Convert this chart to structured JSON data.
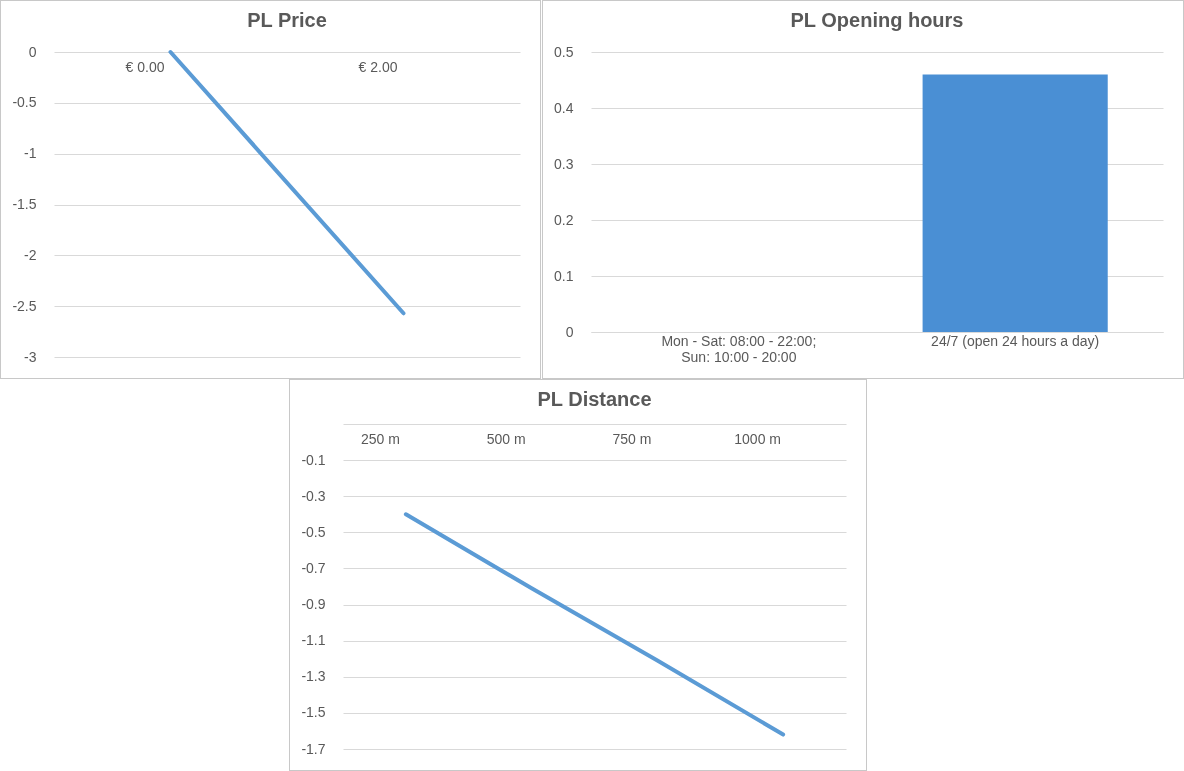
{
  "chart_data": [
    {
      "type": "line",
      "title": "PL Price",
      "categories": [
        "€ 0.00",
        "€ 2.00"
      ],
      "series": [
        {
          "color": "#5b9bd5",
          "values": [
            0,
            -2.57
          ]
        }
      ],
      "ylim": [
        -3,
        0
      ],
      "yticks": [
        -3,
        -2.5,
        -2,
        -1.5,
        -1,
        -0.5,
        0
      ],
      "grid": "y",
      "legend": false,
      "marker": "none"
    },
    {
      "type": "bar",
      "title": "PL Opening hours",
      "categories": [
        "Mon - Sat: 08:00 - 22:00; Sun: 10:00 - 20:00",
        "24/7 (open 24 hours a day)"
      ],
      "series": [
        {
          "color": "#4a8fd4",
          "values": [
            0,
            0.46
          ]
        }
      ],
      "ylim": [
        0,
        0.5
      ],
      "yticks": [
        0,
        0.1,
        0.2,
        0.3,
        0.4,
        0.5
      ],
      "grid": "y",
      "legend": false
    },
    {
      "type": "line",
      "title": "PL Distance",
      "categories": [
        "250 m",
        "500 m",
        "750 m",
        "1000 m"
      ],
      "series": [
        {
          "color": "#5b9bd5",
          "values": [
            -0.4,
            -0.81,
            -1.21,
            -1.62
          ]
        }
      ],
      "ylim": [
        -1.7,
        0.1
      ],
      "yticks": [
        -1.7,
        -1.5,
        -1.3,
        -1.1,
        -0.9,
        -0.7,
        -0.5,
        -0.3,
        -0.1,
        {
          "value": 0.1,
          "label": null
        }
      ],
      "grid": "y",
      "legend": false,
      "marker": "none"
    }
  ]
}
